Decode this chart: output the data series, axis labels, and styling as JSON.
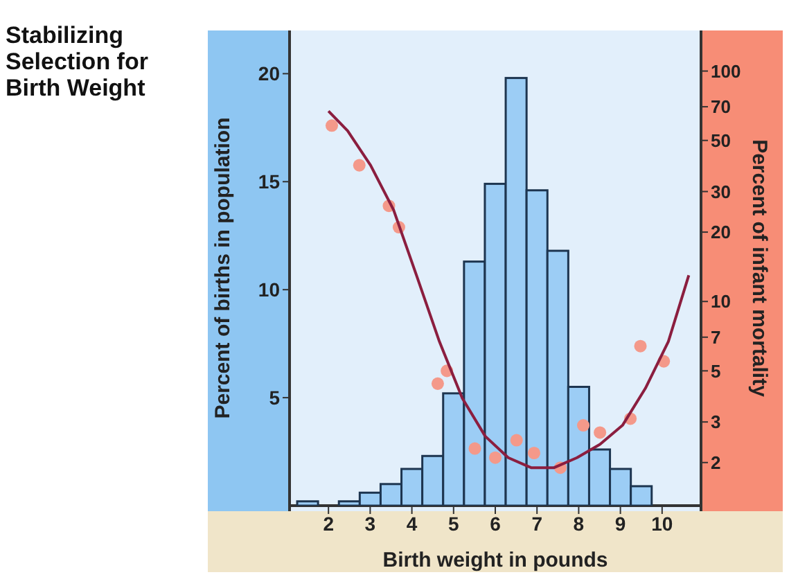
{
  "chart_data": {
    "type": "histogram",
    "title": "Stabilizing Selection for Birth Weight",
    "xlabel": "Birth weight in pounds",
    "ylabel": "Percent of births in population",
    "y2label": "Percent of infant mortality",
    "xlim": [
      1.1,
      10.9
    ],
    "xticks": [
      2,
      3,
      4,
      5,
      6,
      7,
      8,
      9,
      10
    ],
    "ylim": [
      0,
      22
    ],
    "yticks": [
      5,
      10,
      15,
      20
    ],
    "y2lim": [
      1.3,
      150
    ],
    "y2ticks": [
      2,
      3,
      5,
      7,
      10,
      20,
      30,
      50,
      70,
      100
    ],
    "log": "y2",
    "grid": false,
    "legend": false,
    "series": [
      {
        "color": "#9ccdf5",
        "bins": [
          1.25,
          1.75,
          2.25,
          2.75,
          3.25,
          3.75,
          4.25,
          4.75,
          5.25,
          5.75,
          6.25,
          6.75,
          7.25,
          7.75,
          8.25,
          8.75,
          9.25,
          9.75
        ],
        "values": [
          0.2,
          0,
          0.2,
          0.6,
          1.0,
          1.7,
          2.3,
          5.2,
          11.3,
          14.9,
          19.8,
          14.6,
          11.8,
          5.5,
          2.6,
          1.7,
          0.9
        ]
      },
      {
        "type": "scatter",
        "axis": "y2",
        "marker": "circle",
        "color": "#f4998a",
        "x": [
          2.08,
          2.74,
          3.45,
          3.69,
          4.62,
          4.84,
          5.51,
          6.0,
          6.51,
          6.93,
          7.56,
          8.11,
          8.51,
          9.24,
          9.48,
          10.04
        ],
        "values": [
          58,
          39,
          26,
          21,
          4.4,
          5.0,
          2.3,
          2.1,
          2.5,
          2.2,
          1.9,
          2.9,
          2.7,
          3.1,
          6.4,
          5.5
        ]
      },
      {
        "type": "line",
        "axis": "y2",
        "marker": "none",
        "line_style": "solid",
        "color": "#8b1e3f",
        "x": [
          2.0,
          2.46,
          3.01,
          3.56,
          4.11,
          4.66,
          5.21,
          5.76,
          6.31,
          6.86,
          7.41,
          7.96,
          8.51,
          9.05,
          9.6,
          10.15,
          10.64
        ],
        "values": [
          67,
          55,
          39,
          25,
          13,
          6.7,
          3.8,
          2.6,
          2.1,
          1.9,
          1.9,
          2.1,
          2.4,
          2.9,
          4.2,
          6.7,
          13
        ]
      }
    ]
  }
}
